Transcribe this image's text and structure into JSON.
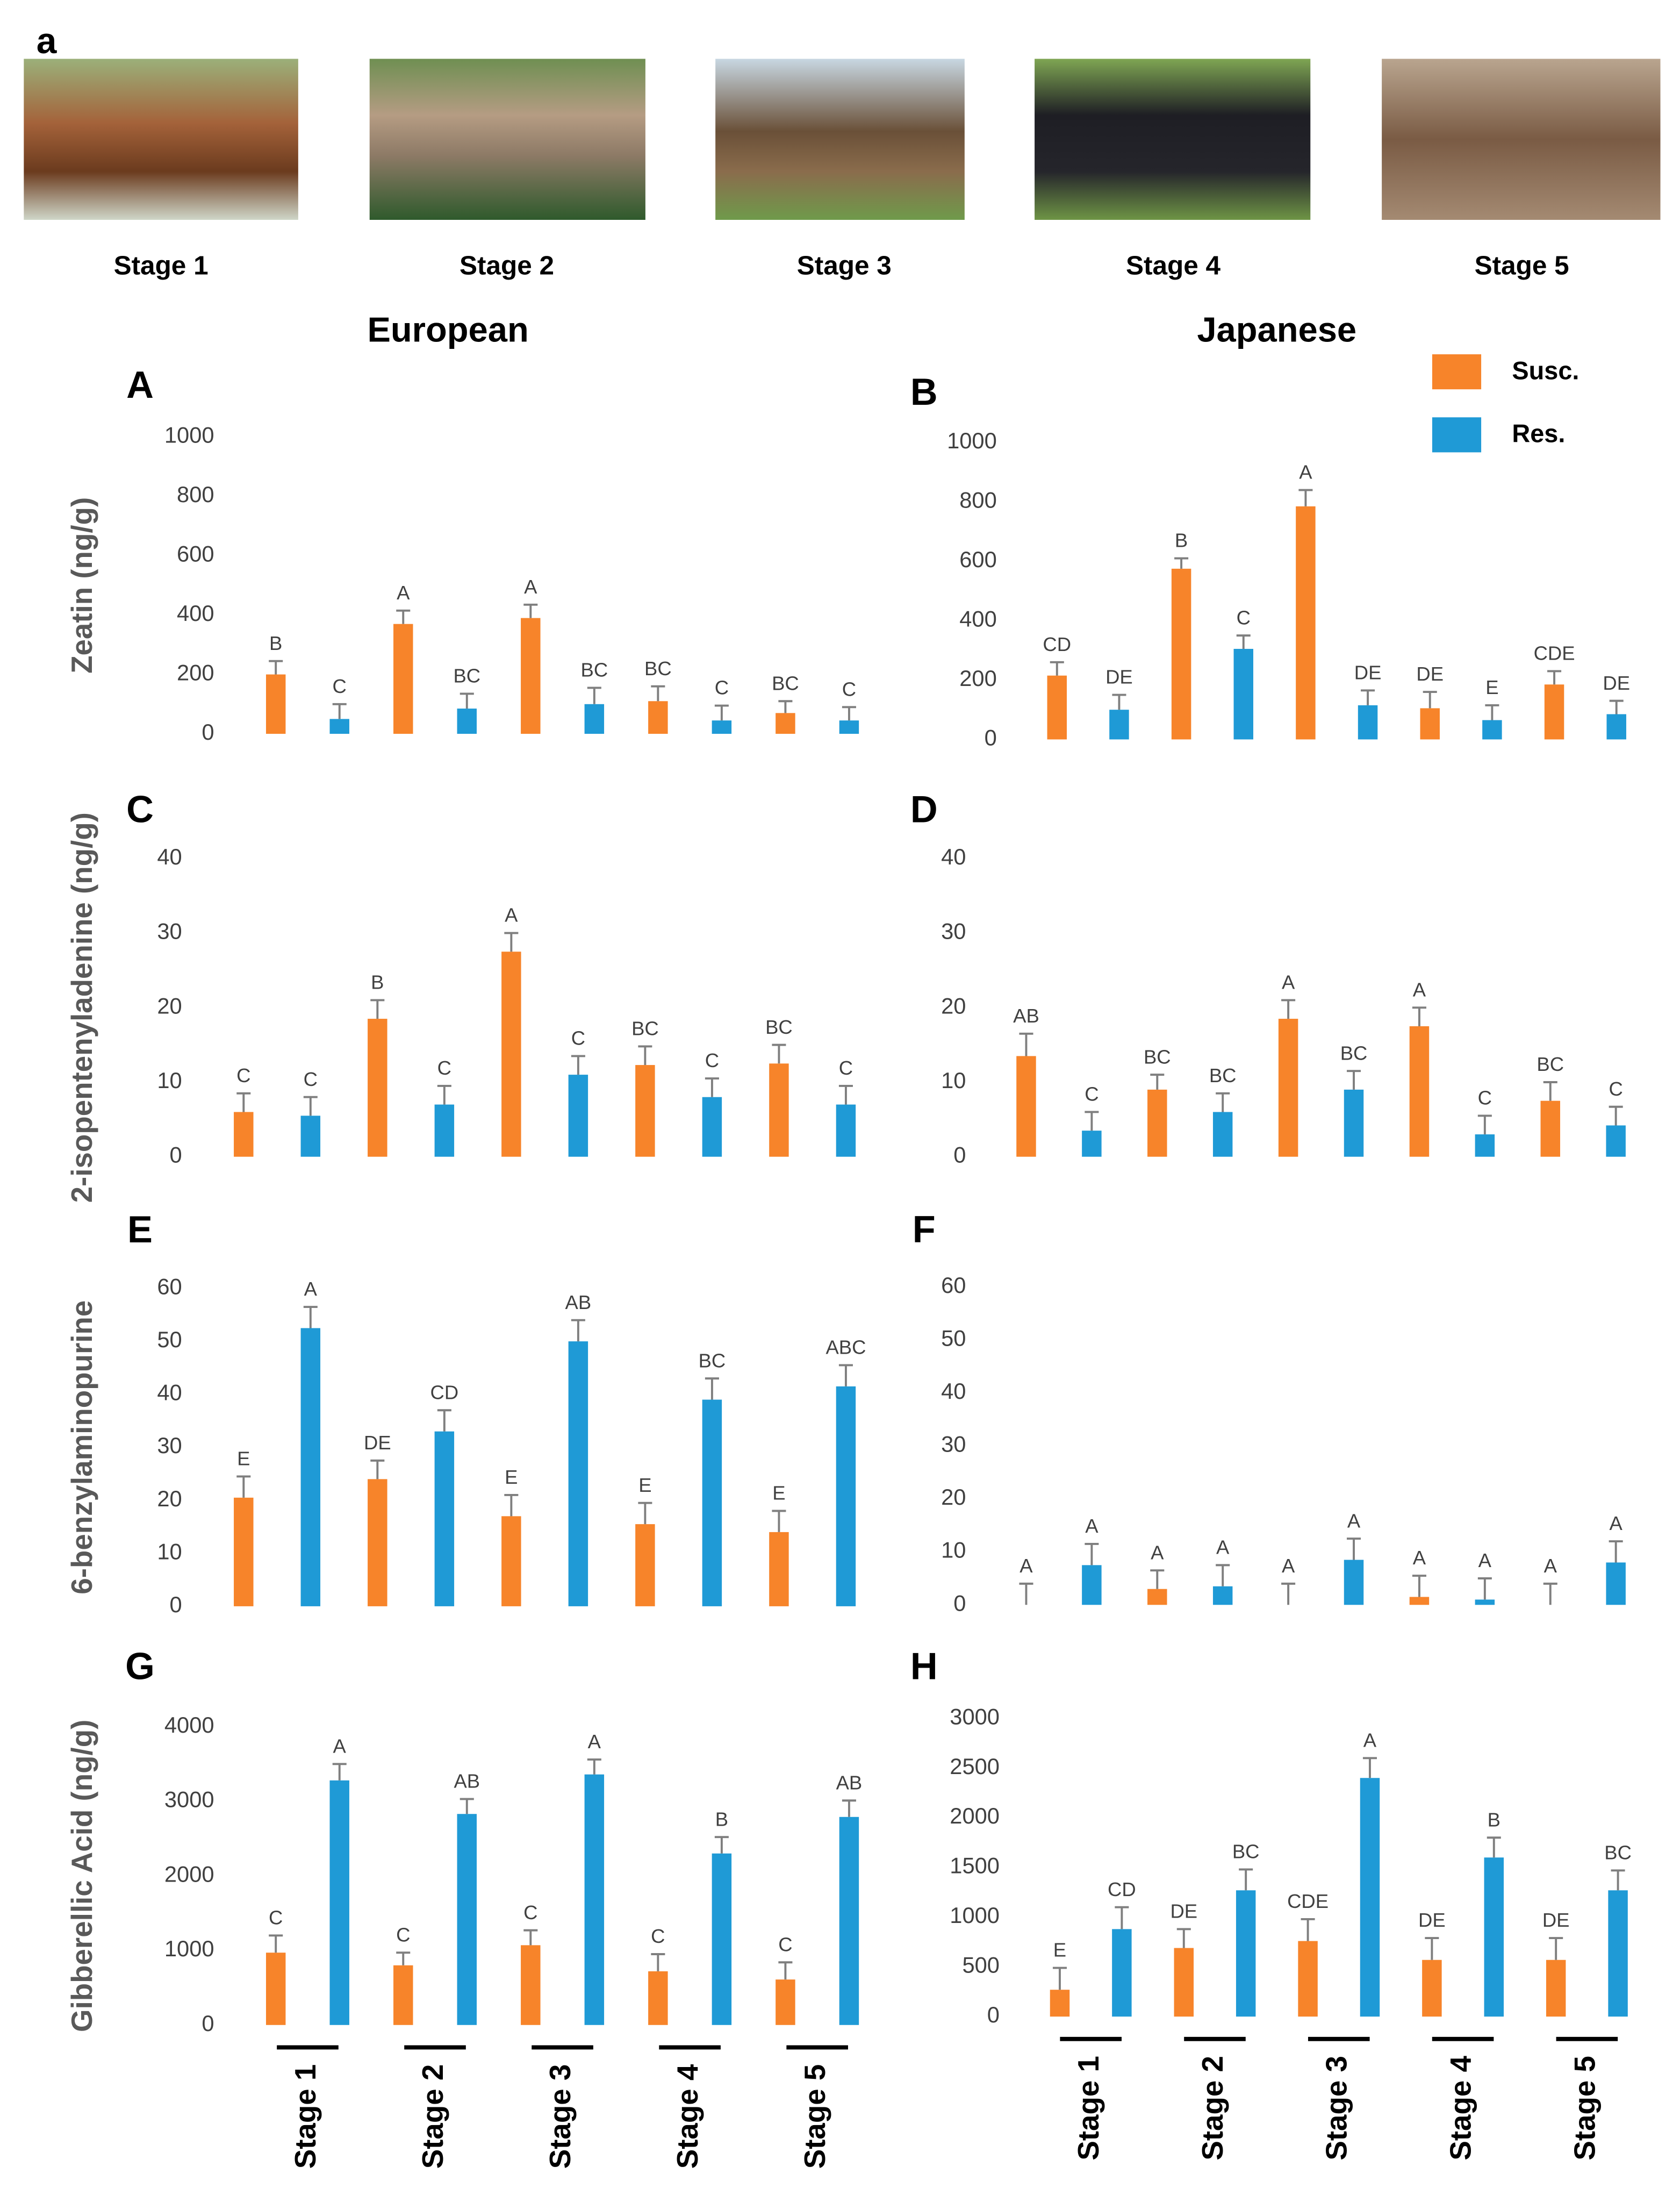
{
  "figure_label": "a",
  "stages": [
    "Stage 1",
    "Stage 2",
    "Stage 3",
    "Stage 4",
    "Stage 5"
  ],
  "columns": [
    "European",
    "Japanese"
  ],
  "chart_data": [
    {
      "type": "bar",
      "panel": "A",
      "ylabel": "Zeatin (ng/g)",
      "ylim": [
        0,
        1000
      ],
      "yticks": [
        0,
        200,
        400,
        600,
        800,
        1000
      ],
      "series": [
        {
          "color": "#f7842a",
          "values": [
            200,
            370,
            390,
            110,
            70
          ],
          "errors": [
            45,
            45,
            45,
            50,
            40
          ],
          "labels": [
            "B",
            "A",
            "A",
            "BC",
            "BC"
          ]
        },
        {
          "color": "#1f9ad6",
          "values": [
            50,
            85,
            100,
            45,
            45
          ],
          "errors": [
            50,
            50,
            55,
            50,
            45
          ],
          "labels": [
            "C",
            "BC",
            "BC",
            "C",
            "C"
          ]
        }
      ]
    },
    {
      "type": "bar",
      "panel": "B",
      "ylim": [
        0,
        1000
      ],
      "yticks": [
        0,
        200,
        400,
        600,
        800,
        1000
      ],
      "legend": "upper right",
      "series": [
        {
          "name": "Susc.",
          "color": "#f7842a",
          "values": [
            215,
            575,
            785,
            105,
            185
          ],
          "errors": [
            45,
            35,
            55,
            55,
            45
          ],
          "labels": [
            "CD",
            "B",
            "A",
            "DE",
            "CDE"
          ]
        },
        {
          "name": "Res.",
          "color": "#1f9ad6",
          "values": [
            100,
            305,
            115,
            65,
            85
          ],
          "errors": [
            50,
            45,
            50,
            50,
            45
          ],
          "labels": [
            "DE",
            "C",
            "DE",
            "E",
            "DE"
          ]
        }
      ]
    },
    {
      "type": "bar",
      "panel": "C",
      "ylabel": "2-isopentenyladenine (ng/g)",
      "ylim": [
        0,
        40
      ],
      "yticks": [
        0,
        10,
        20,
        30,
        40
      ],
      "series": [
        {
          "color": "#f7842a",
          "values": [
            6,
            18.5,
            27.5,
            12.3,
            12.5
          ],
          "errors": [
            2.5,
            2.5,
            2.5,
            2.5,
            2.5
          ],
          "labels": [
            "C",
            "B",
            "A",
            "BC",
            "BC"
          ]
        },
        {
          "color": "#1f9ad6",
          "values": [
            5.5,
            7,
            11,
            8,
            7
          ],
          "errors": [
            2.5,
            2.5,
            2.5,
            2.5,
            2.5
          ],
          "labels": [
            "C",
            "C",
            "C",
            "C",
            "C"
          ]
        }
      ]
    },
    {
      "type": "bar",
      "panel": "D",
      "ylim": [
        0,
        40
      ],
      "yticks": [
        0,
        10,
        20,
        30,
        40
      ],
      "series": [
        {
          "color": "#f7842a",
          "values": [
            13.5,
            9,
            18.5,
            17.5,
            7.5
          ],
          "errors": [
            3,
            2,
            2.5,
            2.5,
            2.5
          ],
          "labels": [
            "AB",
            "BC",
            "A",
            "A",
            "BC"
          ]
        },
        {
          "color": "#1f9ad6",
          "values": [
            3.5,
            6,
            9,
            3,
            4.2
          ],
          "errors": [
            2.5,
            2.5,
            2.5,
            2.5,
            2.5
          ],
          "labels": [
            "C",
            "BC",
            "BC",
            "C",
            "C"
          ]
        }
      ]
    },
    {
      "type": "bar",
      "panel": "E",
      "ylabel": "6-benzylaminopurine",
      "ylim": [
        0,
        60
      ],
      "yticks": [
        0,
        10,
        20,
        30,
        40,
        50,
        60
      ],
      "series": [
        {
          "color": "#f7842a",
          "values": [
            20.5,
            24,
            17,
            15.5,
            14
          ],
          "errors": [
            4,
            3.5,
            4,
            4,
            4
          ],
          "labels": [
            "E",
            "DE",
            "E",
            "E",
            "E"
          ]
        },
        {
          "color": "#1f9ad6",
          "values": [
            52.5,
            33,
            50,
            39,
            41.5
          ],
          "errors": [
            4,
            4,
            4,
            4,
            4
          ],
          "labels": [
            "A",
            "CD",
            "AB",
            "BC",
            "ABC"
          ]
        }
      ]
    },
    {
      "type": "bar",
      "panel": "F",
      "ylim": [
        0,
        60
      ],
      "yticks": [
        0,
        10,
        20,
        30,
        40,
        50,
        60
      ],
      "series": [
        {
          "color": "#f7842a",
          "values": [
            0,
            3,
            0,
            1.5,
            0
          ],
          "errors": [
            4,
            3.5,
            4,
            4,
            4
          ],
          "labels": [
            "A",
            "A",
            "A",
            "A",
            "A"
          ]
        },
        {
          "color": "#1f9ad6",
          "values": [
            7.5,
            3.5,
            8.5,
            1,
            8
          ],
          "errors": [
            4,
            4,
            4,
            4,
            4
          ],
          "labels": [
            "A",
            "A",
            "A",
            "A",
            "A"
          ]
        }
      ]
    },
    {
      "type": "bar",
      "panel": "G",
      "ylabel": "Gibberellic Acid (ng/g)",
      "ylim": [
        0,
        4000
      ],
      "yticks": [
        0,
        1000,
        2000,
        3000,
        4000
      ],
      "categories": [
        "Stage 1",
        "Stage 2",
        "Stage 3",
        "Stage 4",
        "Stage 5"
      ],
      "series": [
        {
          "color": "#f7842a",
          "values": [
            970,
            800,
            1070,
            720,
            610
          ],
          "errors": [
            230,
            170,
            200,
            230,
            230
          ],
          "labels": [
            "C",
            "C",
            "C",
            "C",
            "C"
          ]
        },
        {
          "color": "#1f9ad6",
          "values": [
            3280,
            2830,
            3360,
            2300,
            2790
          ],
          "errors": [
            220,
            200,
            200,
            220,
            220
          ],
          "labels": [
            "A",
            "AB",
            "A",
            "B",
            "AB"
          ]
        }
      ]
    },
    {
      "type": "bar",
      "panel": "H",
      "ylim": [
        0,
        3000
      ],
      "yticks": [
        0,
        500,
        1000,
        1500,
        2000,
        2500,
        3000
      ],
      "categories": [
        "Stage 1",
        "Stage 2",
        "Stage 3",
        "Stage 4",
        "Stage 5"
      ],
      "series": [
        {
          "color": "#f7842a",
          "values": [
            270,
            690,
            760,
            570,
            570
          ],
          "errors": [
            220,
            190,
            220,
            220,
            220
          ],
          "labels": [
            "E",
            "DE",
            "CDE",
            "DE",
            "DE"
          ]
        },
        {
          "color": "#1f9ad6",
          "values": [
            880,
            1270,
            2400,
            1600,
            1270
          ],
          "errors": [
            220,
            210,
            200,
            200,
            200
          ],
          "labels": [
            "CD",
            "BC",
            "A",
            "B",
            "BC"
          ]
        }
      ]
    }
  ]
}
